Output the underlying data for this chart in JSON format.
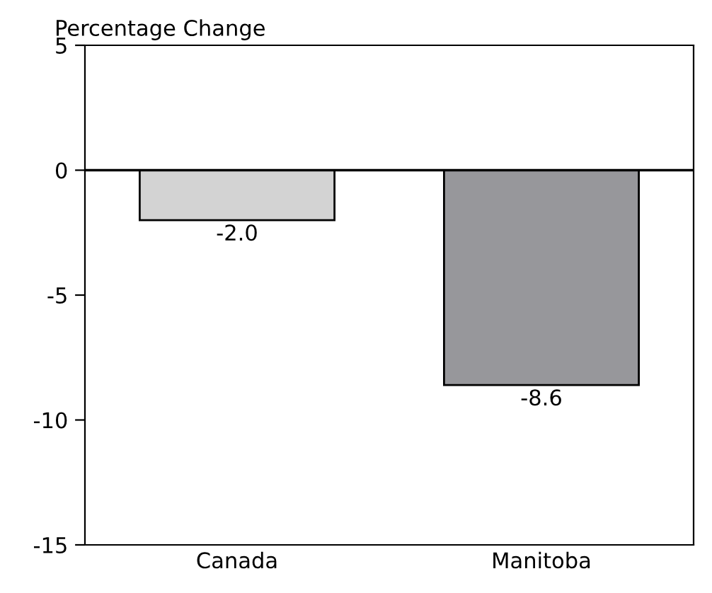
{
  "chart_data": {
    "type": "bar",
    "ylabel": "Percentage Change",
    "categories": [
      "Canada",
      "Manitoba"
    ],
    "values": [
      -2.0,
      -8.6
    ],
    "value_labels": [
      "-2.0",
      "-8.6"
    ],
    "colors": [
      "#d3d3d3",
      "#97979b"
    ],
    "ylim": [
      -15,
      5
    ],
    "yticks": [
      -15,
      -10,
      -5,
      0,
      5
    ],
    "ref_lines": [
      {
        "axis": "y",
        "value": 0,
        "color": "#000000"
      }
    ],
    "grid": false
  }
}
